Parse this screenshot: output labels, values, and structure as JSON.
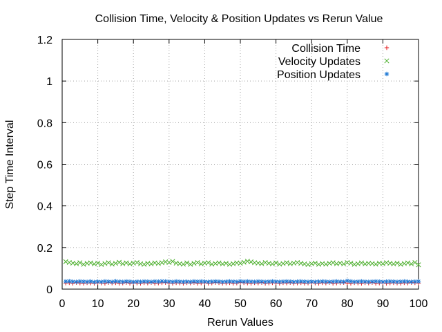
{
  "chart_data": {
    "type": "scatter",
    "title": "Collision Time, Velocity & Position Updates vs Rerun Value",
    "xlabel": "Rerun Values",
    "ylabel": "Step Time Interval",
    "xlim": [
      0,
      100
    ],
    "ylim": [
      0,
      1.2
    ],
    "xticks": [
      0,
      10,
      20,
      30,
      40,
      50,
      60,
      70,
      80,
      90,
      100
    ],
    "yticks": [
      0,
      0.2,
      0.4,
      0.6,
      0.8,
      1,
      1.2
    ],
    "grid": true,
    "legend_position": "top-right",
    "x": [
      1,
      2,
      3,
      4,
      5,
      6,
      7,
      8,
      9,
      10,
      11,
      12,
      13,
      14,
      15,
      16,
      17,
      18,
      19,
      20,
      21,
      22,
      23,
      24,
      25,
      26,
      27,
      28,
      29,
      30,
      31,
      32,
      33,
      34,
      35,
      36,
      37,
      38,
      39,
      40,
      41,
      42,
      43,
      44,
      45,
      46,
      47,
      48,
      49,
      50,
      51,
      52,
      53,
      54,
      55,
      56,
      57,
      58,
      59,
      60,
      61,
      62,
      63,
      64,
      65,
      66,
      67,
      68,
      69,
      70,
      71,
      72,
      73,
      74,
      75,
      76,
      77,
      78,
      79,
      80,
      81,
      82,
      83,
      84,
      85,
      86,
      87,
      88,
      89,
      90,
      91,
      92,
      93,
      94,
      95,
      96,
      97,
      98,
      99,
      100
    ],
    "series": [
      {
        "name": "Collision Time",
        "marker": "plus",
        "color": "#e41a1c",
        "values": [
          0.029,
          0.03,
          0.028,
          0.031,
          0.029,
          0.028,
          0.03,
          0.029,
          0.028,
          0.03,
          0.029,
          0.028,
          0.031,
          0.029,
          0.03,
          0.028,
          0.029,
          0.031,
          0.028,
          0.03,
          0.029,
          0.028,
          0.03,
          0.029,
          0.031,
          0.028,
          0.029,
          0.03,
          0.031,
          0.029,
          0.028,
          0.03,
          0.029,
          0.028,
          0.03,
          0.029,
          0.031,
          0.028,
          0.029,
          0.03,
          0.028,
          0.029,
          0.031,
          0.03,
          0.028,
          0.029,
          0.03,
          0.028,
          0.029,
          0.031,
          0.03,
          0.029,
          0.028,
          0.03,
          0.029,
          0.031,
          0.028,
          0.029,
          0.03,
          0.029,
          0.028,
          0.03,
          0.029,
          0.031,
          0.028,
          0.029,
          0.03,
          0.028,
          0.029,
          0.03,
          0.029,
          0.028,
          0.03,
          0.029,
          0.031,
          0.028,
          0.029,
          0.03,
          0.031,
          0.029,
          0.028,
          0.03,
          0.029,
          0.028,
          0.03,
          0.029,
          0.031,
          0.028,
          0.029,
          0.03,
          0.028,
          0.029,
          0.03,
          0.029,
          0.028,
          0.03,
          0.029,
          0.031,
          0.03,
          0.029
        ]
      },
      {
        "name": "Velocity Updates",
        "marker": "cross",
        "color": "#4daf2e",
        "values": [
          0.132,
          0.128,
          0.125,
          0.122,
          0.127,
          0.119,
          0.124,
          0.126,
          0.121,
          0.125,
          0.118,
          0.123,
          0.127,
          0.12,
          0.124,
          0.129,
          0.122,
          0.126,
          0.121,
          0.125,
          0.128,
          0.122,
          0.119,
          0.124,
          0.121,
          0.126,
          0.123,
          0.127,
          0.131,
          0.128,
          0.133,
          0.125,
          0.122,
          0.12,
          0.126,
          0.119,
          0.124,
          0.128,
          0.121,
          0.125,
          0.127,
          0.12,
          0.123,
          0.126,
          0.121,
          0.124,
          0.119,
          0.122,
          0.126,
          0.124,
          0.129,
          0.134,
          0.131,
          0.127,
          0.125,
          0.122,
          0.128,
          0.124,
          0.121,
          0.126,
          0.12,
          0.123,
          0.127,
          0.122,
          0.125,
          0.128,
          0.124,
          0.121,
          0.118,
          0.122,
          0.125,
          0.119,
          0.123,
          0.12,
          0.124,
          0.127,
          0.122,
          0.125,
          0.121,
          0.128,
          0.125,
          0.119,
          0.122,
          0.126,
          0.121,
          0.124,
          0.123,
          0.12,
          0.125,
          0.122,
          0.127,
          0.124,
          0.121,
          0.125,
          0.119,
          0.123,
          0.126,
          0.121,
          0.128,
          0.117
        ]
      },
      {
        "name": "Position Updates",
        "marker": "star",
        "color": "#1f78d4",
        "values": [
          0.037,
          0.038,
          0.036,
          0.035,
          0.037,
          0.036,
          0.035,
          0.037,
          0.034,
          0.036,
          0.035,
          0.037,
          0.036,
          0.035,
          0.038,
          0.036,
          0.035,
          0.037,
          0.036,
          0.034,
          0.036,
          0.035,
          0.037,
          0.036,
          0.035,
          0.037,
          0.036,
          0.038,
          0.037,
          0.036,
          0.035,
          0.037,
          0.036,
          0.035,
          0.036,
          0.035,
          0.037,
          0.036,
          0.037,
          0.036,
          0.035,
          0.036,
          0.037,
          0.036,
          0.035,
          0.036,
          0.037,
          0.036,
          0.035,
          0.038,
          0.036,
          0.037,
          0.036,
          0.035,
          0.037,
          0.036,
          0.035,
          0.036,
          0.037,
          0.036,
          0.035,
          0.036,
          0.037,
          0.036,
          0.035,
          0.036,
          0.037,
          0.036,
          0.035,
          0.036,
          0.035,
          0.036,
          0.037,
          0.036,
          0.035,
          0.036,
          0.037,
          0.036,
          0.035,
          0.04,
          0.037,
          0.035,
          0.036,
          0.037,
          0.036,
          0.035,
          0.036,
          0.037,
          0.036,
          0.035,
          0.036,
          0.037,
          0.036,
          0.035,
          0.036,
          0.037,
          0.036,
          0.035,
          0.036,
          0.037
        ]
      }
    ]
  }
}
